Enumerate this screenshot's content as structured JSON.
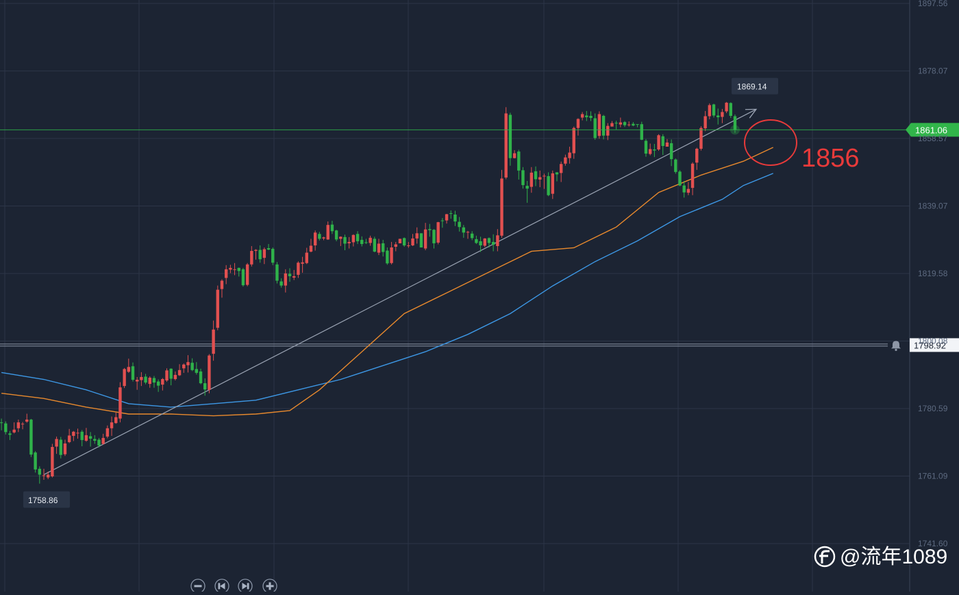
{
  "chart_data": {
    "type": "candlestick",
    "y_axis_ticks": [
      "1897.56",
      "1878.07",
      "1858.57",
      "1839.07",
      "1819.58",
      "1800.08",
      "1780.59",
      "1761.09",
      "1741.60"
    ],
    "ylim": [
      1738,
      1898
    ],
    "current_price": {
      "value": 1861.06,
      "label": "1861.06",
      "color": "#31b54a"
    },
    "alert_line": {
      "value": 1798.92,
      "label": "1798.92"
    },
    "high_label": {
      "value": 1869.14,
      "label": "1869.14"
    },
    "low_label": {
      "value": 1758.86,
      "label": "1758.86"
    },
    "annotation": {
      "text": "1856",
      "value": 1856,
      "color": "#e83a3a"
    },
    "colors": {
      "up": "#e25050",
      "down": "#2fb24a",
      "ma_fast": "#e8892d",
      "ma_slow": "#3d98e6",
      "trend": "#9aa3b3"
    },
    "trend_line": {
      "from": [
        0,
        1761.5
      ],
      "to": [
        168,
        1867
      ]
    },
    "ma_fast": [
      [
        -10,
        1785
      ],
      [
        0,
        1783.5
      ],
      [
        10,
        1781
      ],
      [
        20,
        1779
      ],
      [
        30,
        1779
      ],
      [
        40,
        1778.5
      ],
      [
        50,
        1779
      ],
      [
        58,
        1780
      ],
      [
        65,
        1786
      ],
      [
        75,
        1797
      ],
      [
        85,
        1808
      ],
      [
        95,
        1814
      ],
      [
        105,
        1820
      ],
      [
        115,
        1826
      ],
      [
        125,
        1827
      ],
      [
        135,
        1833
      ],
      [
        145,
        1843
      ],
      [
        155,
        1848
      ],
      [
        165,
        1852
      ],
      [
        172,
        1856
      ]
    ],
    "ma_slow": [
      [
        -10,
        1791
      ],
      [
        0,
        1789
      ],
      [
        10,
        1786
      ],
      [
        20,
        1782
      ],
      [
        30,
        1781
      ],
      [
        40,
        1782
      ],
      [
        50,
        1783
      ],
      [
        60,
        1786
      ],
      [
        70,
        1789
      ],
      [
        80,
        1793
      ],
      [
        90,
        1797
      ],
      [
        100,
        1802
      ],
      [
        110,
        1808
      ],
      [
        120,
        1816
      ],
      [
        130,
        1823
      ],
      [
        140,
        1829
      ],
      [
        150,
        1836
      ],
      [
        160,
        1841
      ],
      [
        165,
        1845
      ],
      [
        172,
        1848.5
      ]
    ],
    "candles": [
      [
        -10,
        1776.6,
        1776.4,
        1777.7,
        1774.3
      ],
      [
        -9,
        1776.3,
        1773.8,
        1776.9,
        1773.1
      ],
      [
        -8,
        1773.4,
        1773.0,
        1774.1,
        1771.5
      ],
      [
        -7,
        1773.7,
        1774.5,
        1776.6,
        1773.4
      ],
      [
        -6,
        1774.9,
        1776.6,
        1777.4,
        1773.8
      ],
      [
        -5,
        1776.1,
        1776.2,
        1776.7,
        1774.6
      ],
      [
        -4,
        1776.8,
        1777.4,
        1779.1,
        1776.5
      ],
      [
        -3,
        1777.4,
        1767.3,
        1777.6,
        1766.6
      ],
      [
        -2,
        1767.9,
        1763.0,
        1768.3,
        1762.1
      ],
      [
        -1,
        1763.2,
        1761.5,
        1763.9,
        1758.9
      ],
      [
        0,
        1761.1,
        1761.3,
        1763.2,
        1760.0
      ],
      [
        1,
        1760.7,
        1761.5,
        1762.4,
        1760.2
      ],
      [
        2,
        1761.0,
        1769.5,
        1770.4,
        1760.7
      ],
      [
        3,
        1769.6,
        1771.8,
        1772.5,
        1767.5
      ],
      [
        4,
        1771.6,
        1767.2,
        1772.4,
        1766.2
      ],
      [
        5,
        1767.4,
        1770.5,
        1771.6,
        1766.9
      ],
      [
        6,
        1770.9,
        1772.8,
        1774.7,
        1770.6
      ],
      [
        7,
        1772.7,
        1773.9,
        1774.1,
        1771.2
      ],
      [
        8,
        1773.4,
        1773.6,
        1774.8,
        1771.9
      ],
      [
        9,
        1773.9,
        1771.5,
        1774.4,
        1769.7
      ],
      [
        10,
        1771.3,
        1772.9,
        1775.0,
        1771.0
      ],
      [
        11,
        1772.6,
        1771.9,
        1773.8,
        1769.6
      ],
      [
        12,
        1771.8,
        1771.3,
        1772.9,
        1770.4
      ],
      [
        13,
        1771.6,
        1769.9,
        1772.1,
        1769.4
      ],
      [
        14,
        1770.4,
        1772.1,
        1773.3,
        1770.2
      ],
      [
        15,
        1772.5,
        1774.9,
        1775.7,
        1772.0
      ],
      [
        16,
        1774.9,
        1776.6,
        1778.3,
        1772.7
      ],
      [
        17,
        1776.4,
        1778.1,
        1779.4,
        1776.2
      ],
      [
        18,
        1777.7,
        1786.7,
        1788.2,
        1776.6
      ],
      [
        19,
        1787.1,
        1792.0,
        1792.3,
        1786.5
      ],
      [
        20,
        1791.2,
        1792.6,
        1795.0,
        1790.9
      ],
      [
        21,
        1792.8,
        1788.9,
        1793.9,
        1788.4
      ],
      [
        22,
        1788.4,
        1788.9,
        1789.7,
        1786.0
      ],
      [
        23,
        1788.8,
        1789.7,
        1791.1,
        1787.1
      ],
      [
        24,
        1789.8,
        1788.1,
        1790.6,
        1787.6
      ],
      [
        25,
        1787.7,
        1789.5,
        1789.9,
        1786.6
      ],
      [
        26,
        1789.4,
        1788.1,
        1790.0,
        1786.6
      ],
      [
        27,
        1788.4,
        1787.2,
        1789.0,
        1785.4
      ],
      [
        28,
        1787.5,
        1789.1,
        1789.4,
        1785.8
      ],
      [
        29,
        1788.7,
        1791.6,
        1792.2,
        1788.3
      ],
      [
        30,
        1792.1,
        1789.2,
        1792.2,
        1787.3
      ],
      [
        31,
        1789.1,
        1790.3,
        1791.3,
        1788.7
      ],
      [
        32,
        1790.2,
        1791.7,
        1793.4,
        1790.0
      ],
      [
        33,
        1792.2,
        1793.3,
        1793.6,
        1790.9
      ],
      [
        34,
        1793.1,
        1794.0,
        1796.0,
        1791.0
      ],
      [
        35,
        1793.8,
        1791.7,
        1795.1,
        1791.4
      ],
      [
        36,
        1792.0,
        1790.9,
        1794.0,
        1790.4
      ],
      [
        37,
        1791.3,
        1787.9,
        1792.1,
        1787.6
      ],
      [
        38,
        1787.9,
        1786.1,
        1789.3,
        1784.3
      ],
      [
        39,
        1786.0,
        1795.9,
        1796.3,
        1785.0
      ],
      [
        40,
        1796.4,
        1803.4,
        1806.0,
        1794.4
      ],
      [
        41,
        1803.9,
        1814.9,
        1816.1,
        1803.2
      ],
      [
        42,
        1815.1,
        1817.5,
        1817.9,
        1812.6
      ],
      [
        43,
        1818.3,
        1820.8,
        1822.0,
        1816.5
      ],
      [
        44,
        1820.7,
        1821.2,
        1822.1,
        1819.7
      ],
      [
        45,
        1820.8,
        1820.8,
        1822.6,
        1819.1
      ],
      [
        46,
        1821.2,
        1820.3,
        1821.3,
        1818.7
      ],
      [
        47,
        1820.8,
        1816.2,
        1821.2,
        1815.8
      ],
      [
        48,
        1816.3,
        1822.2,
        1822.6,
        1815.9
      ],
      [
        49,
        1822.2,
        1826.1,
        1827.5,
        1821.6
      ],
      [
        50,
        1826.1,
        1826.4,
        1826.6,
        1823.6
      ],
      [
        51,
        1826.4,
        1823.7,
        1827.7,
        1822.7
      ],
      [
        52,
        1824.1,
        1826.6,
        1827.1,
        1822.3
      ],
      [
        53,
        1826.9,
        1826.5,
        1828.1,
        1826.3
      ],
      [
        54,
        1826.7,
        1822.7,
        1827.1,
        1822.0
      ],
      [
        55,
        1822.2,
        1817.5,
        1822.9,
        1816.7
      ],
      [
        56,
        1817.3,
        1816.1,
        1818.2,
        1815.5
      ],
      [
        57,
        1816.1,
        1819.6,
        1820.8,
        1814.1
      ],
      [
        58,
        1819.5,
        1818.8,
        1821.1,
        1817.2
      ],
      [
        59,
        1818.4,
        1818.8,
        1820.6,
        1817.7
      ],
      [
        60,
        1819.2,
        1822.7,
        1823.1,
        1818.3
      ],
      [
        61,
        1822.4,
        1822.8,
        1824.4,
        1819.8
      ],
      [
        62,
        1822.6,
        1825.6,
        1827.0,
        1822.3
      ],
      [
        63,
        1825.9,
        1827.6,
        1829.6,
        1825.7
      ],
      [
        64,
        1827.7,
        1831.4,
        1832.0,
        1826.2
      ],
      [
        65,
        1831.0,
        1829.6,
        1831.6,
        1829.1
      ],
      [
        66,
        1829.7,
        1830.0,
        1830.2,
        1829.2
      ],
      [
        67,
        1829.4,
        1833.6,
        1834.6,
        1829.3
      ],
      [
        68,
        1833.7,
        1831.8,
        1834.8,
        1831.0
      ],
      [
        69,
        1832.0,
        1829.4,
        1832.2,
        1828.9
      ],
      [
        70,
        1829.6,
        1830.2,
        1830.3,
        1827.5
      ],
      [
        71,
        1830.1,
        1828.2,
        1830.8,
        1826.3
      ],
      [
        72,
        1828.3,
        1828.7,
        1830.1,
        1826.8
      ],
      [
        73,
        1828.6,
        1830.7,
        1830.9,
        1827.4
      ],
      [
        74,
        1831.0,
        1828.9,
        1831.8,
        1828.1
      ],
      [
        75,
        1829.3,
        1828.1,
        1830.3,
        1827.4
      ],
      [
        76,
        1828.6,
        1828.4,
        1829.6,
        1828.1
      ],
      [
        77,
        1828.4,
        1829.9,
        1830.5,
        1827.6
      ],
      [
        78,
        1829.6,
        1825.9,
        1830.2,
        1825.7
      ],
      [
        79,
        1825.6,
        1828.2,
        1829.6,
        1824.9
      ],
      [
        80,
        1828.3,
        1825.8,
        1829.3,
        1824.5
      ],
      [
        81,
        1826.2,
        1822.5,
        1827.1,
        1822.1
      ],
      [
        82,
        1822.6,
        1827.1,
        1828.7,
        1822.2
      ],
      [
        83,
        1827.3,
        1828.0,
        1828.7,
        1826.0
      ],
      [
        84,
        1828.3,
        1829.6,
        1829.6,
        1829.1
      ],
      [
        85,
        1829.8,
        1827.7,
        1830.0,
        1827.3
      ],
      [
        86,
        1827.5,
        1827.7,
        1828.7,
        1827.0
      ],
      [
        87,
        1827.7,
        1829.7,
        1831.0,
        1827.5
      ],
      [
        88,
        1829.7,
        1831.2,
        1832.9,
        1828.2
      ],
      [
        89,
        1831.2,
        1827.1,
        1831.2,
        1827.1
      ],
      [
        90,
        1826.8,
        1832.3,
        1834.2,
        1826.3
      ],
      [
        91,
        1832.4,
        1832.1,
        1833.9,
        1830.2
      ],
      [
        92,
        1832.2,
        1828.3,
        1832.4,
        1826.8
      ],
      [
        93,
        1828.5,
        1834.4,
        1834.5,
        1828.0
      ],
      [
        94,
        1834.9,
        1834.8,
        1835.6,
        1832.8
      ],
      [
        95,
        1834.9,
        1836.7,
        1836.8,
        1834.0
      ],
      [
        96,
        1837.0,
        1836.8,
        1837.8,
        1835.4
      ],
      [
        97,
        1836.6,
        1834.6,
        1837.7,
        1833.3
      ],
      [
        98,
        1834.5,
        1833.0,
        1835.9,
        1831.7
      ],
      [
        99,
        1832.9,
        1831.4,
        1833.6,
        1829.9
      ],
      [
        100,
        1831.6,
        1831.6,
        1831.9,
        1829.6
      ],
      [
        101,
        1831.1,
        1829.8,
        1831.8,
        1829.2
      ],
      [
        102,
        1829.5,
        1828.4,
        1830.5,
        1828.1
      ],
      [
        103,
        1828.9,
        1827.7,
        1830.2,
        1825.8
      ],
      [
        104,
        1827.6,
        1829.7,
        1829.8,
        1827.2
      ],
      [
        105,
        1829.8,
        1828.4,
        1830.0,
        1827.1
      ],
      [
        106,
        1828.7,
        1827.9,
        1830.9,
        1826.0
      ],
      [
        107,
        1827.5,
        1830.6,
        1832.4,
        1826.0
      ],
      [
        108,
        1830.5,
        1847.0,
        1849.5,
        1829.9
      ],
      [
        109,
        1847.3,
        1865.8,
        1867.6,
        1846.8
      ],
      [
        110,
        1865.4,
        1852.9,
        1866.0,
        1850.7
      ],
      [
        111,
        1852.9,
        1854.3,
        1855.2,
        1852.8
      ],
      [
        112,
        1854.8,
        1849.3,
        1855.3,
        1846.7
      ],
      [
        113,
        1849.4,
        1845.1,
        1850.3,
        1844.1
      ],
      [
        114,
        1844.9,
        1844.1,
        1846.3,
        1840.0
      ],
      [
        115,
        1844.6,
        1848.7,
        1850.3,
        1842.9
      ],
      [
        116,
        1849.1,
        1846.8,
        1850.5,
        1844.8
      ],
      [
        117,
        1846.7,
        1847.4,
        1849.3,
        1844.5
      ],
      [
        118,
        1847.8,
        1847.8,
        1848.4,
        1844.0
      ],
      [
        119,
        1847.7,
        1842.2,
        1848.8,
        1841.9
      ],
      [
        120,
        1842.6,
        1848.5,
        1849.3,
        1841.1
      ],
      [
        121,
        1848.8,
        1848.2,
        1848.8,
        1846.2
      ],
      [
        122,
        1848.6,
        1851.2,
        1851.9,
        1846.0
      ],
      [
        123,
        1851.3,
        1853.1,
        1853.9,
        1850.7
      ],
      [
        124,
        1852.9,
        1854.5,
        1856.2,
        1851.3
      ],
      [
        125,
        1854.3,
        1861.6,
        1862.0,
        1852.7
      ],
      [
        126,
        1861.6,
        1864.2,
        1864.4,
        1859.4
      ],
      [
        127,
        1864.6,
        1865.6,
        1866.2,
        1863.8
      ],
      [
        128,
        1865.2,
        1864.7,
        1866.5,
        1863.6
      ],
      [
        129,
        1865.1,
        1864.5,
        1866.4,
        1863.6
      ],
      [
        130,
        1864.4,
        1858.7,
        1865.8,
        1858.2
      ],
      [
        131,
        1859.3,
        1865.6,
        1866.4,
        1858.5
      ],
      [
        132,
        1865.1,
        1859.4,
        1865.4,
        1858.3
      ],
      [
        133,
        1859.4,
        1862.2,
        1863.0,
        1858.1
      ],
      [
        134,
        1862.0,
        1863.0,
        1863.6,
        1862.7
      ],
      [
        135,
        1863.1,
        1862.9,
        1863.7,
        1861.2
      ],
      [
        136,
        1862.6,
        1863.2,
        1864.6,
        1861.8
      ],
      [
        137,
        1863.3,
        1862.4,
        1863.6,
        1861.9
      ],
      [
        138,
        1862.4,
        1862.6,
        1863.5,
        1862.0
      ],
      [
        139,
        1862.8,
        1862.3,
        1863.3,
        1862.1
      ],
      [
        140,
        1862.7,
        1862.6,
        1862.7,
        1861.8
      ],
      [
        141,
        1862.7,
        1858.2,
        1863.4,
        1858.1
      ],
      [
        142,
        1857.9,
        1854.2,
        1858.4,
        1853.3
      ],
      [
        143,
        1854.1,
        1855.5,
        1857.1,
        1853.7
      ],
      [
        144,
        1855.4,
        1855.1,
        1857.0,
        1853.2
      ],
      [
        145,
        1855.4,
        1859.5,
        1859.8,
        1855.0
      ],
      [
        146,
        1859.2,
        1856.4,
        1859.8,
        1853.8
      ],
      [
        147,
        1856.2,
        1857.4,
        1858.4,
        1856.5
      ],
      [
        148,
        1857.2,
        1852.6,
        1858.3,
        1850.6
      ],
      [
        149,
        1852.5,
        1848.9,
        1852.8,
        1848.4
      ],
      [
        150,
        1849.0,
        1845.0,
        1849.4,
        1844.8
      ],
      [
        151,
        1845.0,
        1843.0,
        1846.3,
        1841.5
      ],
      [
        152,
        1842.9,
        1844.0,
        1846.0,
        1842.2
      ],
      [
        153,
        1844.3,
        1851.3,
        1851.7,
        1842.2
      ],
      [
        154,
        1851.6,
        1855.6,
        1855.9,
        1849.5
      ],
      [
        155,
        1855.6,
        1861.6,
        1862.1,
        1855.1
      ],
      [
        156,
        1861.5,
        1865.0,
        1866.5,
        1860.7
      ],
      [
        157,
        1865.0,
        1868.2,
        1868.7,
        1864.1
      ],
      [
        158,
        1868.4,
        1865.2,
        1868.6,
        1864.6
      ],
      [
        159,
        1865.2,
        1864.7,
        1867.2,
        1862.6
      ],
      [
        160,
        1864.8,
        1866.2,
        1867.1,
        1863.0
      ],
      [
        161,
        1866.4,
        1868.9,
        1869.1,
        1865.9
      ],
      [
        162,
        1868.8,
        1865.1,
        1869.0,
        1864.5
      ],
      [
        163,
        1865.0,
        1861.1,
        1865.5,
        1860.2
      ]
    ]
  },
  "controls": {
    "zoom_out": "zoom-out",
    "prev": "previous",
    "next": "next",
    "zoom_in": "zoom-in"
  },
  "watermark": {
    "text": "@流年1089",
    "icon": "feather-logo"
  }
}
